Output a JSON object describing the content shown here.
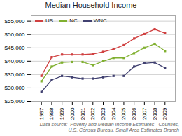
{
  "chart_data": {
    "type": "line",
    "title": "Median Household Income",
    "x": [
      1997,
      1998,
      1999,
      2000,
      2001,
      2002,
      2003,
      2004,
      2005,
      2006,
      2007,
      2008,
      2009
    ],
    "series": [
      {
        "name": "US",
        "color": "#d04040",
        "marker": "square",
        "values": [
          34500,
          41500,
          42500,
          42500,
          42500,
          42700,
          43500,
          44500,
          46000,
          48500,
          50200,
          52000,
          50500
        ]
      },
      {
        "name": "NC",
        "color": "#80b030",
        "marker": "square",
        "values": [
          32500,
          38000,
          39500,
          39700,
          39700,
          38500,
          40000,
          41200,
          41200,
          43000,
          45000,
          46500,
          43800
        ]
      },
      {
        "name": "WNC",
        "color": "#404070",
        "marker": "square",
        "values": [
          28500,
          33000,
          34500,
          34000,
          33500,
          33500,
          34000,
          34500,
          34500,
          38000,
          39200,
          39500,
          37500
        ]
      }
    ],
    "xlim": [
      1996,
      2010
    ],
    "xticks": [
      1997,
      1998,
      1999,
      2000,
      2001,
      2002,
      2003,
      2004,
      2005,
      2006,
      2007,
      2008,
      2009
    ],
    "ylim": [
      25000,
      57000
    ],
    "yticks": [
      {
        "value": 25000,
        "label": "$25,000"
      },
      {
        "value": 30000,
        "label": "$30,000"
      },
      {
        "value": 35000,
        "label": "$35,000"
      },
      {
        "value": 40000,
        "label": "$40,000"
      },
      {
        "value": 45000,
        "label": "$45,000"
      },
      {
        "value": 50000,
        "label": "$50,000"
      },
      {
        "value": 55000,
        "label": "$55,000"
      }
    ],
    "grid": true,
    "legend": "upper left",
    "annotations": [
      "Data source:  Poverty and Median Income Estimates - Counties,\nU.S. Census Bureau, Small Area Estimates Branch"
    ]
  }
}
